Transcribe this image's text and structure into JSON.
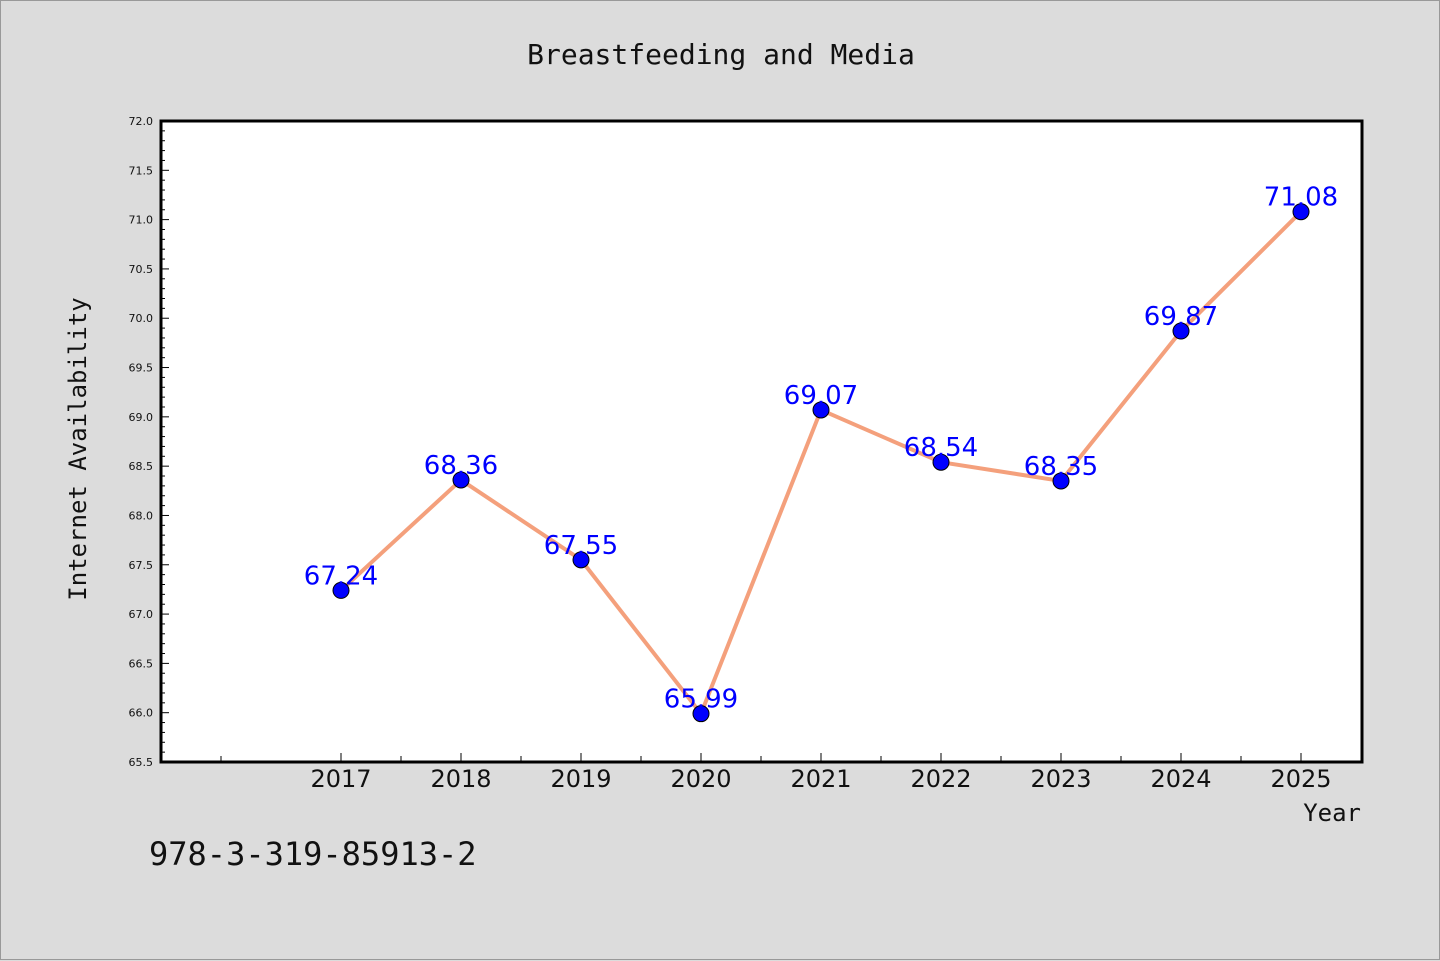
{
  "chart_data": {
    "type": "line",
    "title": "Breastfeeding and Media",
    "xlabel": "Year",
    "ylabel": "Internet Availability",
    "categories": [
      "2017",
      "2018",
      "2019",
      "2020",
      "2021",
      "2022",
      "2023",
      "2024",
      "2025"
    ],
    "series": [
      {
        "values": [
          67.24,
          68.36,
          67.55,
          65.99,
          69.07,
          68.54,
          68.35,
          69.87,
          71.08
        ],
        "data_labels": [
          "67.24",
          "68.36",
          "67.55",
          "65.99",
          "69.07",
          "68.54",
          "68.35",
          "69.87",
          "71.08"
        ]
      }
    ],
    "ylim": [
      65.5,
      72.0
    ],
    "yticks": [
      "65.5",
      "66.0",
      "66.5",
      "67.0",
      "67.5",
      "68.0",
      "68.5",
      "69.0",
      "69.5",
      "70.0",
      "70.5",
      "71.0",
      "71.5",
      "72.0"
    ],
    "grid": false,
    "line_color": "#f4a07c",
    "marker_color": "#0000ff",
    "label_color": "#0000ff",
    "plot_background": "#ffffff",
    "figure_background": "#dcdcdc"
  },
  "footer_text": "978-3-319-85913-2"
}
